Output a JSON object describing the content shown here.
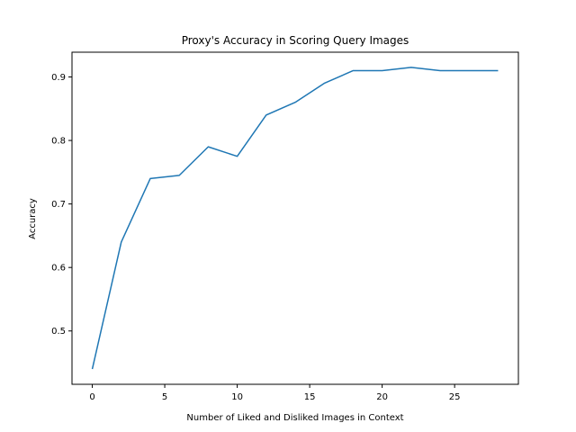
{
  "chart_data": {
    "type": "line",
    "title": "Proxy's Accuracy in Scoring Query Images",
    "xlabel": "Number of Liked and Disliked Images in Context",
    "ylabel": "Accuracy",
    "xlim": [
      -1.4,
      29.4
    ],
    "ylim": [
      0.416,
      0.939
    ],
    "xticks": [
      0,
      5,
      10,
      15,
      20,
      25
    ],
    "yticks": [
      0.5,
      0.6,
      0.7,
      0.8,
      0.9
    ],
    "xtick_labels": [
      "0",
      "5",
      "10",
      "15",
      "20",
      "25"
    ],
    "ytick_labels": [
      "0.5",
      "0.6",
      "0.7",
      "0.8",
      "0.9"
    ],
    "grid": false,
    "series": [
      {
        "color": "#1f77b4",
        "x": [
          0,
          2,
          4,
          6,
          8,
          10,
          12,
          14,
          16,
          18,
          20,
          22,
          24,
          26,
          28
        ],
        "y": [
          0.44,
          0.64,
          0.74,
          0.745,
          0.79,
          0.775,
          0.84,
          0.86,
          0.89,
          0.91,
          0.91,
          0.915,
          0.91,
          0.91,
          0.91
        ]
      }
    ]
  }
}
